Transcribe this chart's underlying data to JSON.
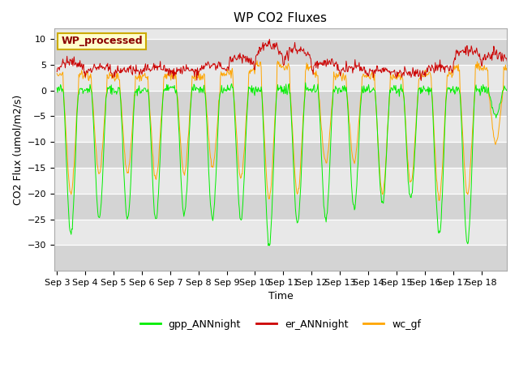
{
  "title": "WP CO2 Fluxes",
  "xlabel": "Time",
  "ylabel_text": "CO2 Flux (umol/m2/s)",
  "ylim": [
    -35,
    12
  ],
  "yticks": [
    -30,
    -25,
    -20,
    -15,
    -10,
    -5,
    0,
    5,
    10
  ],
  "n_days": 16,
  "pts_per_day": 48,
  "legend_label": "WP_processed",
  "legend_label_color": "#8B0000",
  "legend_bg": "#FFFFCC",
  "legend_border": "#CCAA00",
  "line_colors": {
    "gpp": "#00EE00",
    "er": "#CC0000",
    "wc": "#FFA500"
  },
  "line_labels": {
    "gpp": "gpp_ANNnight",
    "er": "er_ANNnight",
    "wc": "wc_gf"
  },
  "band_colors": [
    "#DCDCDC",
    "#E8E8E8"
  ],
  "grid_color": "#C8C8C8",
  "title_fontsize": 11,
  "axis_fontsize": 9,
  "tick_fontsize": 8,
  "day_amps_gpp": [
    28,
    25,
    25,
    25,
    24,
    25,
    25,
    30,
    26,
    25,
    23,
    22,
    21,
    28,
    30,
    5
  ],
  "day_amps_wc": [
    20,
    16,
    16,
    17,
    16,
    15,
    17,
    21,
    20,
    14,
    14,
    20,
    18,
    21,
    20,
    10
  ],
  "day_er_base": [
    3.5,
    3.0,
    2.8,
    3.0,
    3.0,
    3.2,
    4.0,
    5.5,
    5.0,
    3.5,
    3.0,
    3.0,
    3.0,
    3.5,
    5.0,
    5.0
  ],
  "day_er_peak": [
    5.5,
    4.5,
    4.0,
    4.5,
    4.0,
    5.0,
    6.5,
    9.0,
    8.0,
    5.5,
    4.5,
    4.0,
    3.5,
    4.5,
    8.0,
    7.0
  ]
}
